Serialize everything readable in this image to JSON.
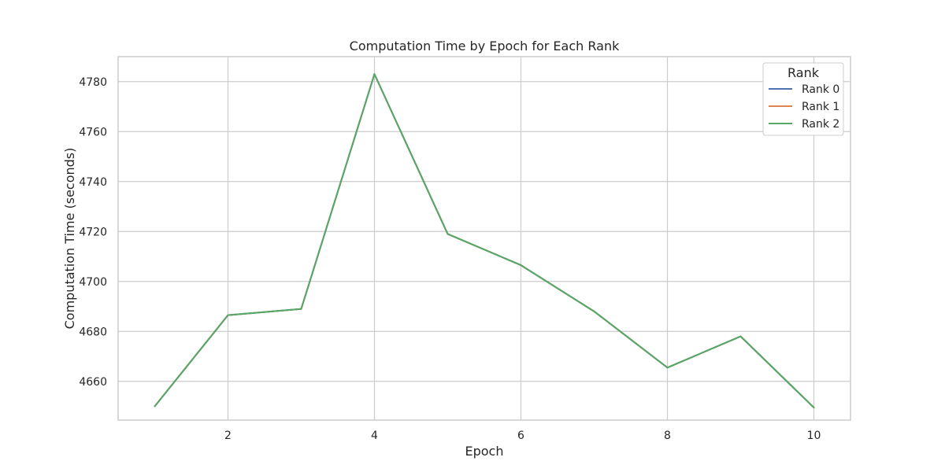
{
  "chart_data": {
    "type": "line",
    "title": "Computation Time by Epoch for Each Rank",
    "xlabel": "Epoch",
    "ylabel": "Computation Time (seconds)",
    "x": [
      1,
      2,
      3,
      4,
      5,
      6,
      7,
      8,
      9,
      10
    ],
    "xlim": [
      0.5,
      10.5
    ],
    "ylim": [
      4644.5,
      4790
    ],
    "xticks": [
      2,
      4,
      6,
      8,
      10
    ],
    "yticks": [
      4660,
      4680,
      4700,
      4720,
      4740,
      4760,
      4780
    ],
    "grid": true,
    "legend": {
      "title": "Rank",
      "position": "top-right"
    },
    "series": [
      {
        "name": "Rank 0",
        "color": "#4c72b0",
        "values": [
          4650,
          4686.5,
          4689,
          4783,
          4719,
          4706.5,
          4688,
          4665.5,
          4678,
          4649.5
        ]
      },
      {
        "name": "Rank 1",
        "color": "#dd8452",
        "values": [
          4650,
          4686.5,
          4689,
          4783,
          4719,
          4706.5,
          4688,
          4665.5,
          4678,
          4649.5
        ]
      },
      {
        "name": "Rank 2",
        "color": "#55a868",
        "values": [
          4650,
          4686.5,
          4689,
          4783,
          4719,
          4706.5,
          4688,
          4665.5,
          4678,
          4649.5
        ]
      }
    ]
  }
}
